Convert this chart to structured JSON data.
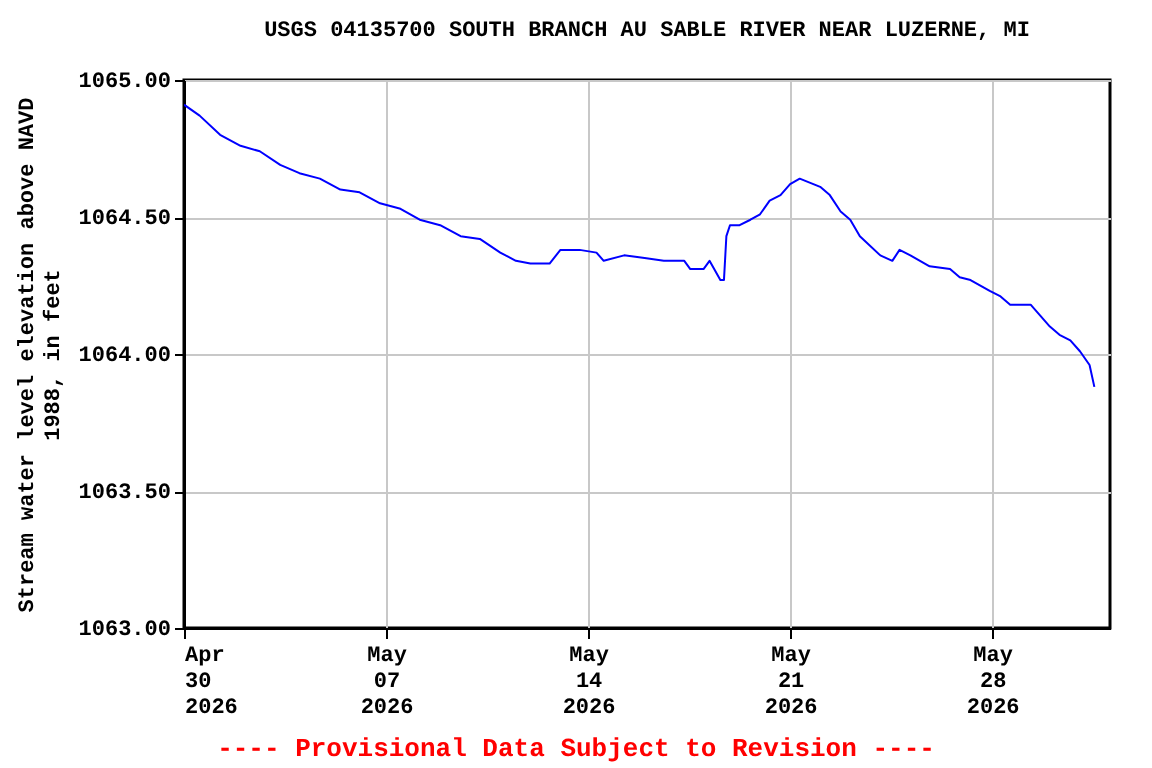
{
  "chart_data": {
    "type": "line",
    "title": "USGS 04135700 SOUTH BRANCH AU SABLE RIVER NEAR LUZERNE, MI",
    "ylabel": "Stream water level elevation above NAVD 1988, in feet",
    "annotations": [
      "---- Provisional Data Subject to Revision ----"
    ],
    "x": [
      "2026-04-30T00:00",
      "2026-04-30T13:00",
      "2026-05-01T06:00",
      "2026-05-01T23:00",
      "2026-05-02T15:00",
      "2026-05-03T08:00",
      "2026-05-04T00:00",
      "2026-05-04T17:00",
      "2026-05-05T10:00",
      "2026-05-06T02:00",
      "2026-05-06T19:00",
      "2026-05-07T12:00",
      "2026-05-08T04:00",
      "2026-05-08T21:00",
      "2026-05-09T14:00",
      "2026-05-10T06:00",
      "2026-05-10T23:00",
      "2026-05-11T12:00",
      "2026-05-12T00:00",
      "2026-05-12T16:00",
      "2026-05-13T01:00",
      "2026-05-13T17:00",
      "2026-05-14T07:00",
      "2026-05-14T13:00",
      "2026-05-15T06:00",
      "2026-05-15T23:00",
      "2026-05-16T15:00",
      "2026-05-17T08:00",
      "2026-05-17T13:00",
      "2026-05-18T00:00",
      "2026-05-18T05:00",
      "2026-05-18T14:00",
      "2026-05-18T17:00",
      "2026-05-18T19:00",
      "2026-05-18T22:00",
      "2026-05-19T06:00",
      "2026-05-19T15:00",
      "2026-05-19T23:00",
      "2026-05-20T07:00",
      "2026-05-20T16:00",
      "2026-05-21T00:00",
      "2026-05-21T08:00",
      "2026-05-22T01:00",
      "2026-05-22T09:00",
      "2026-05-22T18:00",
      "2026-05-23T02:00",
      "2026-05-23T10:00",
      "2026-05-24T03:00",
      "2026-05-24T13:00",
      "2026-05-24T19:00",
      "2026-05-25T04:00",
      "2026-05-25T20:00",
      "2026-05-26T13:00",
      "2026-05-26T21:00",
      "2026-05-27T06:00",
      "2026-05-27T22:00",
      "2026-05-28T07:00",
      "2026-05-28T15:00",
      "2026-05-29T08:00",
      "2026-05-29T16:00",
      "2026-05-30T00:00",
      "2026-05-30T08:00",
      "2026-05-30T17:00",
      "2026-05-31T01:00",
      "2026-05-31T09:00",
      "2026-05-31T13:00"
    ],
    "series": [
      {
        "color": "#0000ff",
        "values": [
          1064.91,
          1064.87,
          1064.8,
          1064.76,
          1064.74,
          1064.69,
          1064.66,
          1064.64,
          1064.6,
          1064.59,
          1064.55,
          1064.53,
          1064.49,
          1064.47,
          1064.43,
          1064.42,
          1064.37,
          1064.34,
          1064.33,
          1064.33,
          1064.38,
          1064.38,
          1064.37,
          1064.34,
          1064.36,
          1064.35,
          1064.34,
          1064.34,
          1064.31,
          1064.31,
          1064.34,
          1064.27,
          1064.27,
          1064.43,
          1064.47,
          1064.47,
          1064.49,
          1064.51,
          1064.56,
          1064.58,
          1064.62,
          1064.64,
          1064.61,
          1064.58,
          1064.52,
          1064.49,
          1064.43,
          1064.36,
          1064.34,
          1064.38,
          1064.36,
          1064.32,
          1064.31,
          1064.28,
          1064.27,
          1064.23,
          1064.21,
          1064.18,
          1064.18,
          1064.14,
          1064.1,
          1064.07,
          1064.05,
          1064.01,
          1063.96,
          1063.88
        ]
      }
    ],
    "xlim": [
      "2026-04-30T00:00",
      "2026-06-01T02:00"
    ],
    "xticks": [
      {
        "value": "2026-04-30",
        "label": "Apr\n30\n2026"
      },
      {
        "value": "2026-05-07",
        "label": "May\n07\n2026"
      },
      {
        "value": "2026-05-14",
        "label": "May\n14\n2026"
      },
      {
        "value": "2026-05-21",
        "label": "May\n21\n2026"
      },
      {
        "value": "2026-05-28",
        "label": "May\n28\n2026"
      }
    ],
    "ylim": [
      1063,
      1065
    ],
    "yticks": [
      {
        "value": 1063,
        "label": "1063.00"
      },
      {
        "value": 1063.5,
        "label": "1063.50"
      },
      {
        "value": 1064,
        "label": "1064.00"
      },
      {
        "value": 1064.5,
        "label": "1064.50"
      },
      {
        "value": 1065,
        "label": "1065.00"
      }
    ],
    "grid": true
  }
}
